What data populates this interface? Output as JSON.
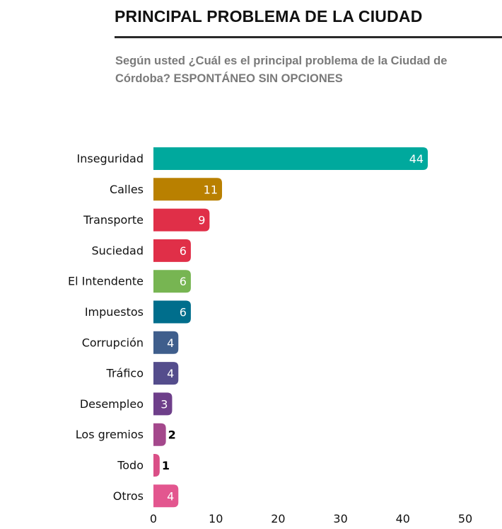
{
  "chart_data": {
    "type": "bar",
    "orientation": "horizontal",
    "title": "PRINCIPAL PROBLEMA DE LA CIUDAD",
    "subtitle": "Según usted ¿Cuál es el principal problema de la Ciudad de Córdoba?  ESPONTÁNEO SIN OPCIONES",
    "xlabel": "",
    "ylabel": "",
    "xlim": [
      0,
      50
    ],
    "xticks": [
      0,
      10,
      20,
      30,
      40,
      50
    ],
    "xtick_labels": [
      "0",
      "10",
      "20",
      "30",
      "40",
      "50"
    ],
    "grid": false,
    "categories": [
      "Inseguridad",
      "Calles",
      "Transporte",
      "Suciedad",
      "El Intendente",
      "Impuestos",
      "Corrupción",
      "Tráfico",
      "Desempleo",
      "Los gremios",
      "Todo",
      "Otros"
    ],
    "values": [
      44,
      11,
      9,
      6,
      6,
      6,
      4,
      4,
      3,
      2,
      1,
      4
    ],
    "value_labels": [
      "44",
      "11",
      "9",
      "6",
      "6",
      "6",
      "4",
      "4",
      "3",
      "2",
      "1",
      "4"
    ],
    "colors": [
      "#00A99D",
      "#B98000",
      "#E02F48",
      "#E02F48",
      "#77B552",
      "#006E8C",
      "#3F5E8C",
      "#544D8C",
      "#6E3F8A",
      "#A4488C",
      "#DA4F87",
      "#E3568F"
    ]
  }
}
